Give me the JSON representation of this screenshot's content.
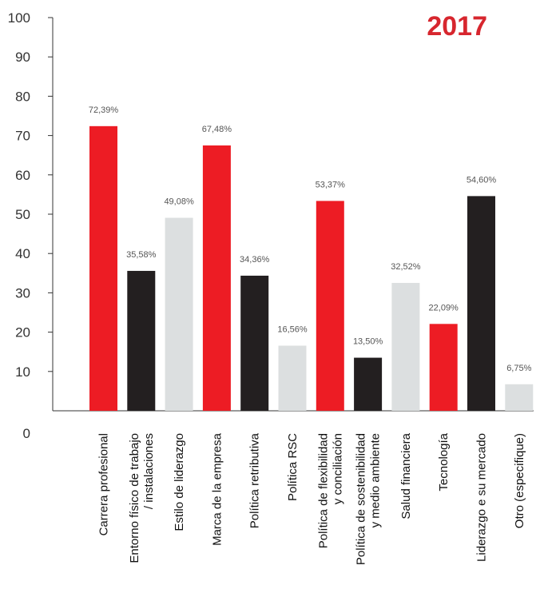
{
  "chart_data": {
    "type": "bar",
    "title": "2017",
    "xlabel": "",
    "ylabel": "",
    "ylim": [
      0,
      100
    ],
    "yticks": [
      0,
      10,
      20,
      30,
      40,
      50,
      60,
      70,
      80,
      90,
      100
    ],
    "grid": false,
    "categories": [
      [
        "Carrera profesional"
      ],
      [
        "Entorno físico de trabajo",
        "/ instalaciones"
      ],
      [
        "Estilo de liderazgo"
      ],
      [
        "Marca de la empresa"
      ],
      [
        "Política retributiva"
      ],
      [
        "Política RSC"
      ],
      [
        "Política de flexibilidad",
        "y conciliación"
      ],
      [
        "Política de sostenibilidad",
        "y medio ambiente"
      ],
      [
        "Salud financiera"
      ],
      [
        "Tecnología"
      ],
      [
        "Liderazgo e su mercado"
      ],
      [
        "Otro (especifique)"
      ]
    ],
    "values": [
      72.39,
      35.58,
      49.08,
      67.48,
      34.36,
      16.56,
      53.37,
      13.5,
      32.52,
      22.09,
      54.6,
      6.75
    ],
    "value_labels": [
      "72,39%",
      "35,58%",
      "49,08%",
      "67,48%",
      "34,36%",
      "16,56%",
      "53,37%",
      "13,50%",
      "32,52%",
      "22,09%",
      "54,60%",
      "6,75%"
    ],
    "bar_colors": [
      "#ed1c24",
      "#231f20",
      "#dcdfe0",
      "#ed1c24",
      "#231f20",
      "#dcdfe0",
      "#ed1c24",
      "#231f20",
      "#dcdfe0",
      "#ed1c24",
      "#231f20",
      "#dcdfe0"
    ],
    "title_color": "#d7262e",
    "axis_color": "#333333"
  }
}
